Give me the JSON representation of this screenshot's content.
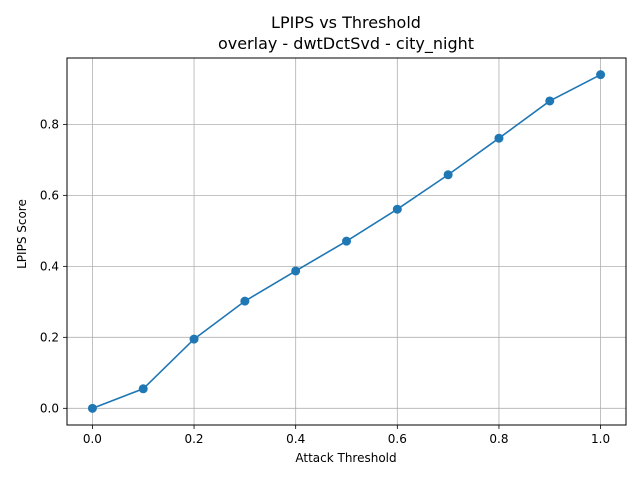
{
  "chart_data": {
    "type": "line",
    "title": "LPIPS vs Threshold",
    "subtitle": "overlay - dwtDctSvd - city_night",
    "xlabel": "Attack Threshold",
    "ylabel": "LPIPS Score",
    "xlim": [
      -0.05,
      1.05
    ],
    "ylim": [
      -0.047,
      0.987
    ],
    "xticks": [
      0.0,
      0.2,
      0.4,
      0.6,
      0.8,
      1.0
    ],
    "xtick_labels": [
      "0.0",
      "0.2",
      "0.4",
      "0.6",
      "0.8",
      "1.0"
    ],
    "yticks": [
      0.0,
      0.2,
      0.4,
      0.6,
      0.8
    ],
    "ytick_labels": [
      "0.0",
      "0.2",
      "0.4",
      "0.6",
      "0.8"
    ],
    "grid": true,
    "legend": false,
    "series": [
      {
        "color": "#1f77b4",
        "marker": "circle",
        "x": [
          0.0,
          0.1,
          0.2,
          0.3,
          0.4,
          0.5,
          0.6,
          0.7,
          0.8,
          0.9,
          1.0
        ],
        "y": [
          0.0,
          0.055,
          0.195,
          0.302,
          0.387,
          0.471,
          0.561,
          0.658,
          0.761,
          0.866,
          0.94
        ]
      }
    ]
  }
}
